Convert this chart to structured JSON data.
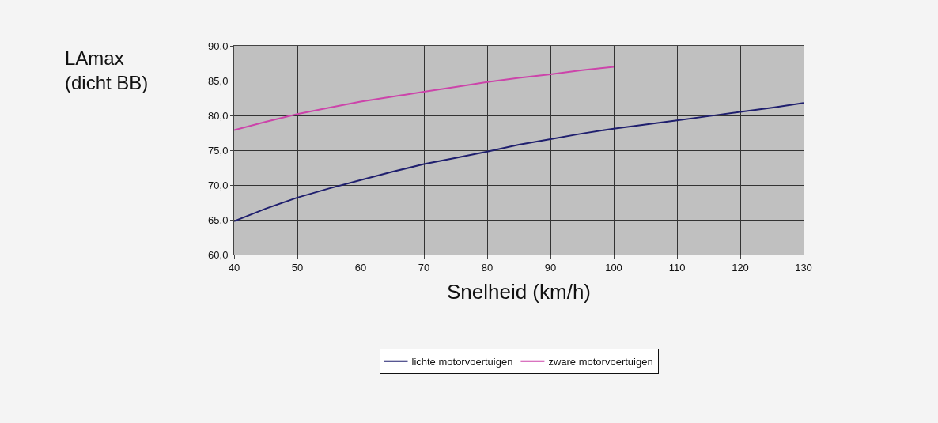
{
  "chart_data": {
    "type": "line",
    "xlabel": "Snelheid (km/h)",
    "ylabel": "LAmax\n(dicht BB)",
    "x": [
      40,
      45,
      50,
      55,
      60,
      65,
      70,
      75,
      80,
      85,
      90,
      95,
      100,
      105,
      110,
      115,
      120,
      125,
      130
    ],
    "series": [
      {
        "name": "lichte motorvoertuigen",
        "color": "#1f1f6e",
        "values": [
          64.8,
          66.6,
          68.2,
          69.5,
          70.7,
          71.9,
          73.0,
          73.9,
          74.8,
          75.8,
          76.6,
          77.4,
          78.1,
          78.7,
          79.3,
          79.9,
          80.5,
          81.1,
          81.8
        ]
      },
      {
        "name": "zware motorvoertuigen",
        "color": "#cc44aa",
        "values": [
          77.9,
          79.1,
          80.2,
          81.1,
          82.0,
          82.7,
          83.4,
          84.1,
          84.8,
          85.4,
          85.9,
          86.5,
          87.0,
          null,
          null,
          null,
          null,
          null,
          null
        ]
      }
    ],
    "xlim": [
      40,
      130
    ],
    "xticks": [
      40,
      50,
      60,
      70,
      80,
      90,
      100,
      110,
      120,
      130
    ],
    "ylim": [
      60,
      90
    ],
    "yticks": [
      {
        "value": 60,
        "label": "60,0"
      },
      {
        "value": 65,
        "label": "65,0"
      },
      {
        "value": 70,
        "label": "70,0"
      },
      {
        "value": 75,
        "label": "75,0"
      },
      {
        "value": 80,
        "label": "80,0"
      },
      {
        "value": 85,
        "label": "85,0"
      },
      {
        "value": 90,
        "label": "90,0"
      }
    ],
    "grid": true,
    "legend": "bottom",
    "marker": "none",
    "line_style": "solid"
  }
}
